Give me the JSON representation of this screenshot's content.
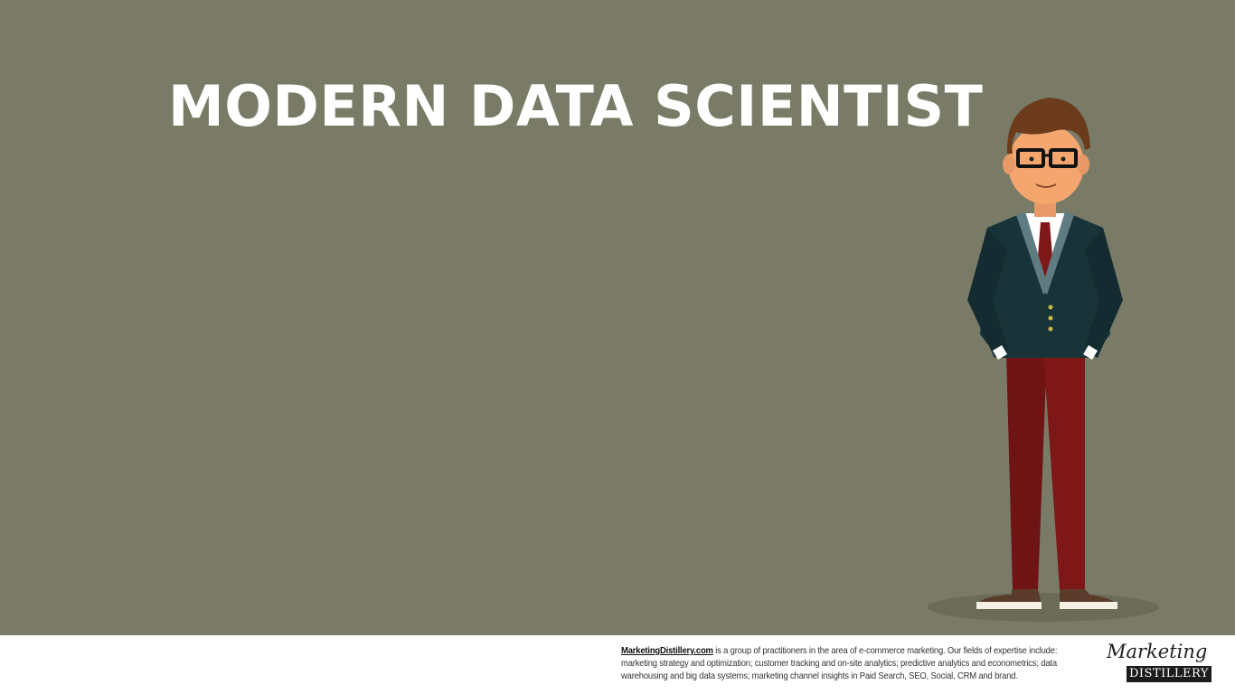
{
  "slide": {
    "title": "MODERN DATA SCIENTIST",
    "background_color": "#7a7b67"
  },
  "character": {
    "icon": "data-scientist-illustration"
  },
  "footer": {
    "link_text": "MarketingDistillery.com",
    "line1_rest": " is a group of practitioners in the area of e-commerce marketing. Our fields of expertise include:",
    "line2": "marketing strategy and optimization; customer tracking and on-site analytics; predictive analytics and econometrics; data",
    "line3": "warehousing and big data systems; marketing channel insights in Paid Search, SEO, Social, CRM and brand.",
    "logo_script": "Marketing",
    "logo_plate": "DISTILLERY"
  }
}
